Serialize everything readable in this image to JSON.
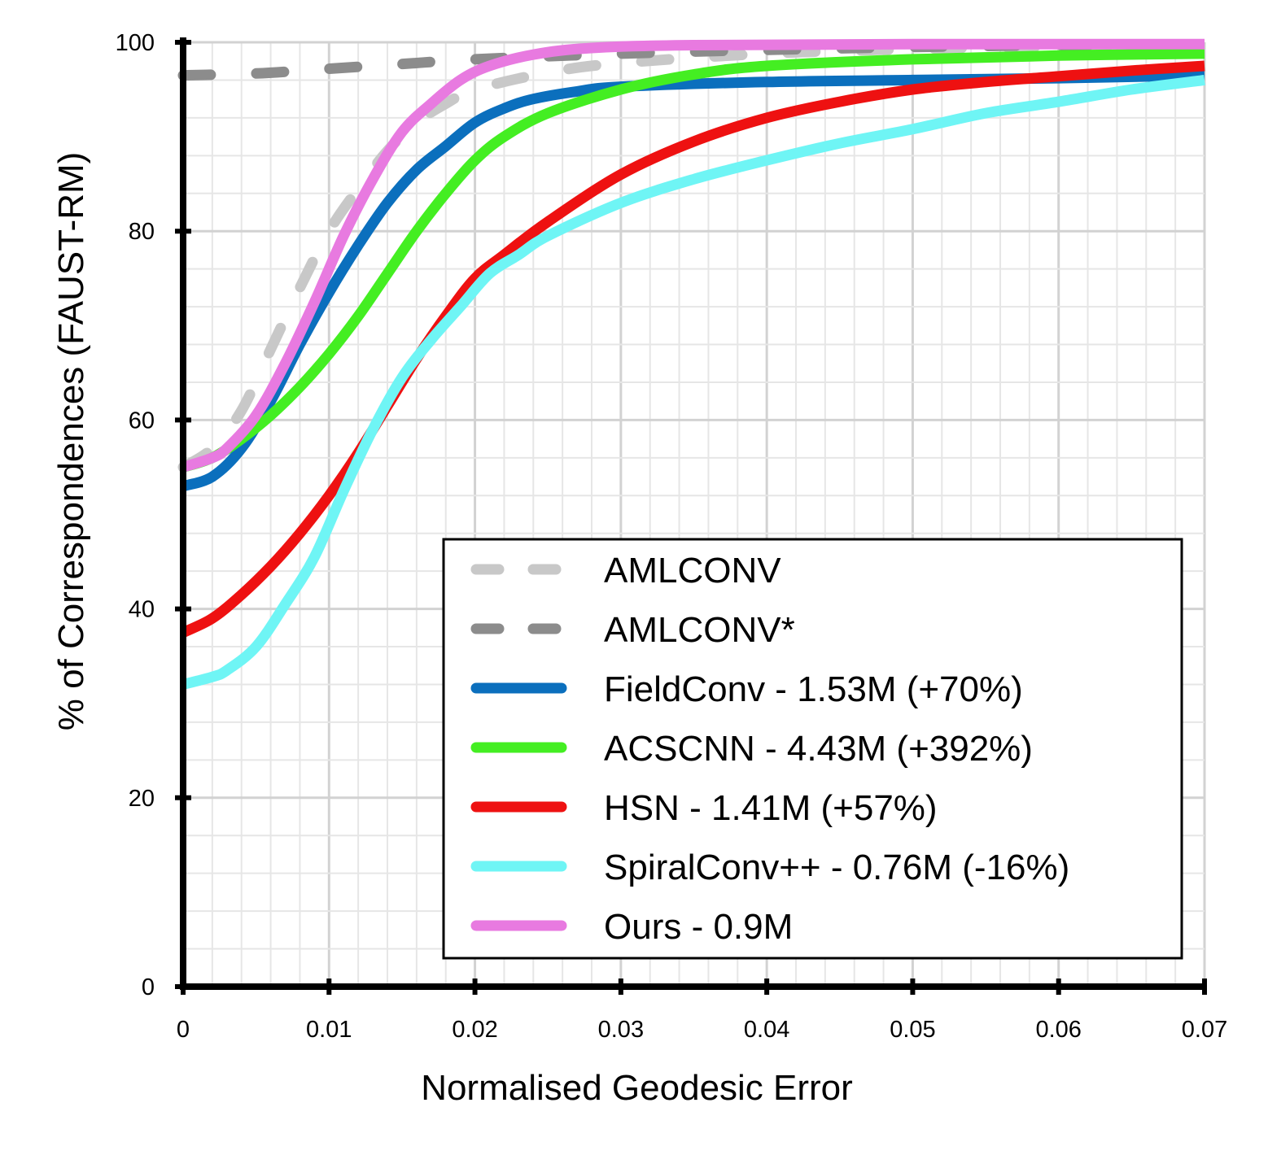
{
  "chart_data": {
    "type": "line",
    "xlabel": "Normalised Geodesic Error",
    "ylabel": "% of Correspondences (FAUST-RM)",
    "xlim": [
      0,
      0.07
    ],
    "ylim": [
      0,
      100
    ],
    "x_ticks": [
      "0",
      "0.01",
      "0.02",
      "0.03",
      "0.04",
      "0.05",
      "0.06",
      "0.07"
    ],
    "y_ticks": [
      "0",
      "20",
      "40",
      "60",
      "80",
      "100"
    ],
    "grid": true,
    "legend_position": "bottom-right",
    "series": [
      {
        "name": "AMLCONV",
        "color": "#c8c8c8",
        "dash": true,
        "points": [
          [
            0,
            55
          ],
          [
            0.002,
            57
          ],
          [
            0.004,
            61
          ],
          [
            0.006,
            67.5
          ],
          [
            0.008,
            74
          ],
          [
            0.01,
            80
          ],
          [
            0.012,
            84.5
          ],
          [
            0.014,
            88.5
          ],
          [
            0.016,
            91.5
          ],
          [
            0.018,
            93.5
          ],
          [
            0.02,
            95
          ],
          [
            0.025,
            96.8
          ],
          [
            0.03,
            97.8
          ],
          [
            0.04,
            98.8
          ],
          [
            0.05,
            99.3
          ],
          [
            0.06,
            99.6
          ],
          [
            0.07,
            99.8
          ]
        ]
      },
      {
        "name": "AMLCONV*",
        "color": "#8c8c8c",
        "dash": true,
        "points": [
          [
            0,
            96.5
          ],
          [
            0.005,
            96.7
          ],
          [
            0.01,
            97.2
          ],
          [
            0.015,
            97.7
          ],
          [
            0.02,
            98.2
          ],
          [
            0.03,
            98.8
          ],
          [
            0.04,
            99.2
          ],
          [
            0.05,
            99.5
          ],
          [
            0.06,
            99.7
          ],
          [
            0.07,
            99.8
          ]
        ]
      },
      {
        "name": "FieldConv - 1.53M (+70%)",
        "color": "#0b6fbd",
        "dash": false,
        "points": [
          [
            0,
            53
          ],
          [
            0.002,
            54
          ],
          [
            0.004,
            57
          ],
          [
            0.006,
            62
          ],
          [
            0.008,
            68
          ],
          [
            0.01,
            73.5
          ],
          [
            0.012,
            78.5
          ],
          [
            0.014,
            83
          ],
          [
            0.016,
            86.5
          ],
          [
            0.018,
            89
          ],
          [
            0.02,
            91.5
          ],
          [
            0.022,
            93
          ],
          [
            0.024,
            94
          ],
          [
            0.027,
            94.8
          ],
          [
            0.03,
            95.3
          ],
          [
            0.04,
            95.8
          ],
          [
            0.05,
            96
          ],
          [
            0.06,
            96.2
          ],
          [
            0.07,
            96.5
          ]
        ]
      },
      {
        "name": "ACSCNN - 4.43M (+392%)",
        "color": "#44ee22",
        "dash": false,
        "points": [
          [
            0,
            55
          ],
          [
            0.002,
            56
          ],
          [
            0.004,
            58
          ],
          [
            0.006,
            60.5
          ],
          [
            0.008,
            63.5
          ],
          [
            0.01,
            67
          ],
          [
            0.012,
            71
          ],
          [
            0.014,
            75.5
          ],
          [
            0.016,
            80
          ],
          [
            0.018,
            84
          ],
          [
            0.02,
            87.5
          ],
          [
            0.022,
            90
          ],
          [
            0.025,
            92.5
          ],
          [
            0.03,
            95
          ],
          [
            0.035,
            96.6
          ],
          [
            0.04,
            97.5
          ],
          [
            0.05,
            98.2
          ],
          [
            0.06,
            98.6
          ],
          [
            0.07,
            98.8
          ]
        ]
      },
      {
        "name": "HSN - 1.41M (+57%)",
        "color": "#ee1111",
        "dash": false,
        "points": [
          [
            0,
            37.5
          ],
          [
            0.002,
            39
          ],
          [
            0.004,
            41.5
          ],
          [
            0.006,
            44.5
          ],
          [
            0.008,
            48
          ],
          [
            0.01,
            52
          ],
          [
            0.012,
            56.5
          ],
          [
            0.014,
            61.5
          ],
          [
            0.016,
            66.5
          ],
          [
            0.018,
            71
          ],
          [
            0.02,
            75
          ],
          [
            0.022,
            77.5
          ],
          [
            0.025,
            81
          ],
          [
            0.03,
            86
          ],
          [
            0.035,
            89.5
          ],
          [
            0.04,
            92
          ],
          [
            0.045,
            93.7
          ],
          [
            0.05,
            95
          ],
          [
            0.055,
            95.8
          ],
          [
            0.06,
            96.4
          ],
          [
            0.065,
            97
          ],
          [
            0.07,
            97.5
          ]
        ]
      },
      {
        "name": "SpiralConv++ - 0.76M (-16%)",
        "color": "#6ff5f5",
        "dash": false,
        "points": [
          [
            0,
            32
          ],
          [
            0.002,
            32.8
          ],
          [
            0.003,
            33.5
          ],
          [
            0.005,
            36
          ],
          [
            0.007,
            40.5
          ],
          [
            0.009,
            45.5
          ],
          [
            0.011,
            52.5
          ],
          [
            0.013,
            59
          ],
          [
            0.015,
            64.5
          ],
          [
            0.017,
            68.5
          ],
          [
            0.019,
            72
          ],
          [
            0.021,
            75.5
          ],
          [
            0.023,
            77.5
          ],
          [
            0.025,
            79.5
          ],
          [
            0.03,
            83
          ],
          [
            0.035,
            85.5
          ],
          [
            0.04,
            87.5
          ],
          [
            0.045,
            89.3
          ],
          [
            0.05,
            90.8
          ],
          [
            0.055,
            92.5
          ],
          [
            0.06,
            93.7
          ],
          [
            0.065,
            95
          ],
          [
            0.07,
            96
          ]
        ]
      },
      {
        "name": "Ours - 0.9M",
        "color": "#e87ae0",
        "dash": false,
        "points": [
          [
            0,
            55
          ],
          [
            0.002,
            56
          ],
          [
            0.003,
            57
          ],
          [
            0.005,
            60.5
          ],
          [
            0.007,
            66
          ],
          [
            0.009,
            72.5
          ],
          [
            0.011,
            79.5
          ],
          [
            0.013,
            85.5
          ],
          [
            0.015,
            90.5
          ],
          [
            0.017,
            93.5
          ],
          [
            0.019,
            96
          ],
          [
            0.021,
            97.5
          ],
          [
            0.024,
            98.7
          ],
          [
            0.028,
            99.4
          ],
          [
            0.035,
            99.7
          ],
          [
            0.05,
            99.8
          ],
          [
            0.07,
            99.8
          ]
        ]
      }
    ]
  }
}
